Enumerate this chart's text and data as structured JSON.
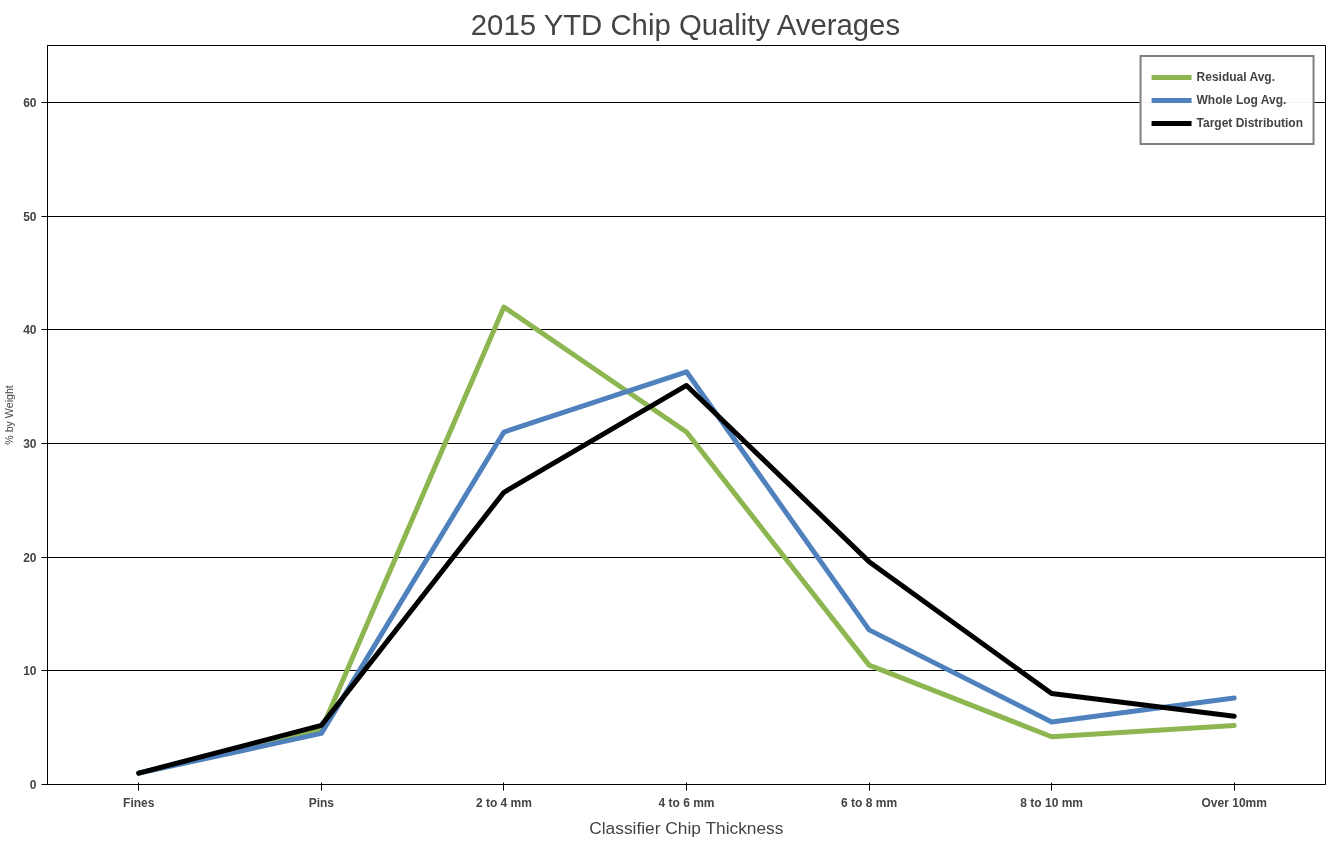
{
  "chart_data": {
    "type": "line",
    "title": "2015 YTD Chip Quality Averages",
    "xlabel": "Classifier Chip Thickness",
    "ylabel": "% by Weight",
    "categories": [
      "Fines",
      "Pins",
      "2 to 4 mm",
      "4 to 6 mm",
      "6 to 8 mm",
      "8 to 10 mm",
      "Over 10mm"
    ],
    "series": [
      {
        "name": "Residual Avg.",
        "color": "#8db650",
        "values": [
          1,
          4.8,
          42,
          31,
          10.5,
          4.2,
          5.2
        ]
      },
      {
        "name": "Whole Log Avg.",
        "color": "#4f81bd",
        "values": [
          1,
          4.5,
          31,
          36.3,
          13.6,
          5.5,
          7.6
        ]
      },
      {
        "name": "Target Distribution",
        "color": "#000000",
        "values": [
          1,
          5.2,
          25.7,
          35.1,
          19.6,
          8,
          6
        ]
      }
    ],
    "ylim": [
      0,
      65
    ],
    "yticks": [
      0,
      10,
      20,
      30,
      40,
      50,
      60
    ],
    "grid": "y",
    "legend": "top right",
    "marker": "none",
    "line_style": "solid"
  }
}
